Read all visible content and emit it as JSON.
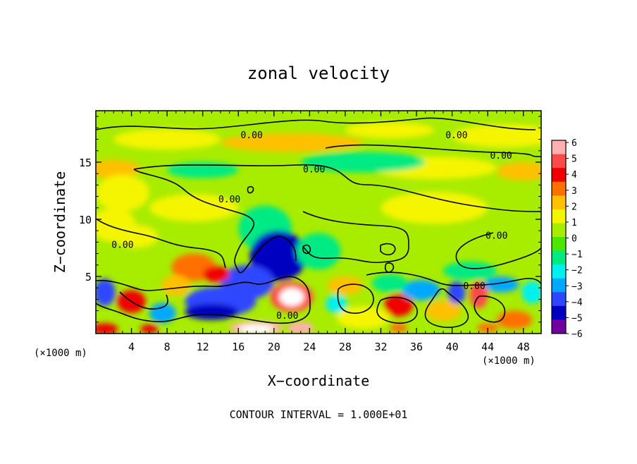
{
  "chart_data": {
    "type": "heatmap",
    "title": "zonal velocity",
    "xlabel": "X−coordinate",
    "ylabel": "Z−coordinate",
    "x_unit_left": "(×1000 m)",
    "x_unit_right": "(×1000 m)",
    "footer": "CONTOUR INTERVAL = 1.000E+01",
    "xlim": [
      0,
      50
    ],
    "ylim": [
      0,
      19.5
    ],
    "x_ticks": [
      4,
      8,
      12,
      16,
      20,
      24,
      28,
      32,
      36,
      40,
      44,
      48
    ],
    "y_ticks": [
      5,
      10,
      15
    ],
    "colorbar": {
      "min": -6,
      "max": 6,
      "ticks": [
        6,
        5,
        4,
        3,
        2,
        1,
        0,
        -1,
        -2,
        -3,
        -4,
        -5,
        -6
      ],
      "tick_labels": [
        "6",
        "5",
        "4",
        "3",
        "2",
        "1",
        "0",
        "−1",
        "−2",
        "−3",
        "−4",
        "−5",
        "−6"
      ],
      "colors": [
        "#ffb0b0",
        "#ff4a4a",
        "#f00000",
        "#ff7000",
        "#ffc000",
        "#f5f500",
        "#a8ec00",
        "#4ce600",
        "#00ea84",
        "#00f0f0",
        "#00a8ff",
        "#2e46ff",
        "#0000c0",
        "#7000a0"
      ]
    },
    "contour_labels": [
      {
        "text": "0.00",
        "x": 17.5,
        "y": 17.4
      },
      {
        "text": "0.00",
        "x": 40.5,
        "y": 17.4
      },
      {
        "text": "0.00",
        "x": 45.5,
        "y": 15.6
      },
      {
        "text": "0.00",
        "x": 24.5,
        "y": 14.4
      },
      {
        "text": "0.00",
        "x": 15,
        "y": 11.8
      },
      {
        "text": "0.00",
        "x": 3,
        "y": 7.8
      },
      {
        "text": "0.00",
        "x": 45,
        "y": 8.6
      },
      {
        "text": "0.00",
        "x": 42.5,
        "y": 4.2
      },
      {
        "text": "0.00",
        "x": 21.5,
        "y": 1.6
      }
    ],
    "blobs": [
      {
        "x": 8,
        "y": 17,
        "rx": 6,
        "ry": 0.9,
        "v": 1.6
      },
      {
        "x": 22,
        "y": 16.7,
        "rx": 8,
        "ry": 0.8,
        "v": 2.0
      },
      {
        "x": 33,
        "y": 17.8,
        "rx": 5,
        "ry": 0.7,
        "v": 1.0
      },
      {
        "x": 46,
        "y": 17.3,
        "rx": 6,
        "ry": 1.0,
        "v": 1.4
      },
      {
        "x": 2,
        "y": 14.4,
        "rx": 3,
        "ry": 0.8,
        "v": 2.4
      },
      {
        "x": 48,
        "y": 14.2,
        "rx": 3,
        "ry": 0.8,
        "v": 2.2
      },
      {
        "x": 38,
        "y": 14.5,
        "rx": 7,
        "ry": 1.0,
        "v": 1.3
      },
      {
        "x": 12,
        "y": 14.3,
        "rx": 4,
        "ry": 0.7,
        "v": -1.0
      },
      {
        "x": 30,
        "y": 15.0,
        "rx": 7,
        "ry": 0.9,
        "v": -0.9
      },
      {
        "x": 3,
        "y": 12.3,
        "rx": 3,
        "ry": 1.6,
        "v": 1.3
      },
      {
        "x": 38,
        "y": 11.0,
        "rx": 6,
        "ry": 1.4,
        "v": 1.2
      },
      {
        "x": 11,
        "y": 11.0,
        "rx": 5,
        "ry": 1.2,
        "v": 1.0
      },
      {
        "x": 2,
        "y": 9.5,
        "rx": 2.5,
        "ry": 1.5,
        "v": 1.2
      },
      {
        "x": 19,
        "y": 9.2,
        "rx": 3,
        "ry": 2.0,
        "v": -1.5
      },
      {
        "x": 20.5,
        "y": 6.8,
        "rx": 3.2,
        "ry": 2.2,
        "v": -4.8
      },
      {
        "x": 17,
        "y": 4.5,
        "rx": 3,
        "ry": 1.5,
        "v": -3.5
      },
      {
        "x": 14,
        "y": 2.8,
        "rx": 4,
        "ry": 1.3,
        "v": -4.2
      },
      {
        "x": 13,
        "y": 1.9,
        "rx": 3,
        "ry": 0.7,
        "v": -5.0
      },
      {
        "x": 11,
        "y": 5.8,
        "rx": 2.5,
        "ry": 1.2,
        "v": 3.4
      },
      {
        "x": 13.5,
        "y": 5.2,
        "rx": 1.5,
        "ry": 0.7,
        "v": 4.2
      },
      {
        "x": 9,
        "y": 4.2,
        "rx": 1.6,
        "ry": 0.9,
        "v": 2.2
      },
      {
        "x": 22,
        "y": 3.2,
        "rx": 2.4,
        "ry": 1.3,
        "v": 4.5
      },
      {
        "x": 22,
        "y": 3.2,
        "rx": 1.4,
        "ry": 0.8,
        "v": 6.2
      },
      {
        "x": 18,
        "y": 0.5,
        "rx": 3,
        "ry": 0.6,
        "v": 5.5
      },
      {
        "x": 18,
        "y": 0.4,
        "rx": 2,
        "ry": 0.4,
        "v": 6.5
      },
      {
        "x": 23,
        "y": 0.5,
        "rx": 1.5,
        "ry": 0.5,
        "v": 5.5
      },
      {
        "x": 4,
        "y": 2.8,
        "rx": 1.6,
        "ry": 1.0,
        "v": 3.6
      },
      {
        "x": 1,
        "y": 3.6,
        "rx": 1.2,
        "ry": 1.2,
        "v": -4.2
      },
      {
        "x": 7.5,
        "y": 1.8,
        "rx": 1.5,
        "ry": 0.9,
        "v": -3.0
      },
      {
        "x": 1,
        "y": 0.4,
        "rx": 1.5,
        "ry": 0.5,
        "v": 4.0
      },
      {
        "x": 6,
        "y": 0.4,
        "rx": 1.0,
        "ry": 0.4,
        "v": 3.5
      },
      {
        "x": 34,
        "y": 2.5,
        "rx": 1.6,
        "ry": 1.0,
        "v": 3.6
      },
      {
        "x": 43,
        "y": 3.4,
        "rx": 1.0,
        "ry": 1.2,
        "v": 4.4
      },
      {
        "x": 28,
        "y": 4.2,
        "rx": 2.0,
        "ry": 0.8,
        "v": 1.9
      },
      {
        "x": 47,
        "y": 1.2,
        "rx": 2.0,
        "ry": 0.8,
        "v": 2.6
      },
      {
        "x": 30,
        "y": 1.4,
        "rx": 3.0,
        "ry": 1.0,
        "v": 1.6
      },
      {
        "x": 39,
        "y": 2.0,
        "rx": 2.0,
        "ry": 0.9,
        "v": 2.0
      },
      {
        "x": 36.5,
        "y": 3.8,
        "rx": 2.2,
        "ry": 0.9,
        "v": -3.2
      },
      {
        "x": 40.5,
        "y": 3.6,
        "rx": 1.0,
        "ry": 1.0,
        "v": -3.8
      },
      {
        "x": 45.5,
        "y": 4.3,
        "rx": 2.0,
        "ry": 0.7,
        "v": -3.2
      },
      {
        "x": 49,
        "y": 3.6,
        "rx": 1.2,
        "ry": 1.0,
        "v": -2.2
      },
      {
        "x": 42,
        "y": 5.5,
        "rx": 3,
        "ry": 0.8,
        "v": -1.3
      },
      {
        "x": 33,
        "y": 4.4,
        "rx": 2.0,
        "ry": 0.8,
        "v": -1.5
      },
      {
        "x": 25,
        "y": 7.2,
        "rx": 2.5,
        "ry": 1.6,
        "v": -1.0
      },
      {
        "x": 4.5,
        "y": 8.5,
        "rx": 2.5,
        "ry": 1.0,
        "v": 1.2
      },
      {
        "x": 44,
        "y": 0.5,
        "rx": 1.2,
        "ry": 0.4,
        "v": 3.4
      },
      {
        "x": 34,
        "y": 0.5,
        "rx": 1.0,
        "ry": 0.4,
        "v": 3.0
      },
      {
        "x": 27,
        "y": 2.6,
        "rx": 1.2,
        "ry": 0.8,
        "v": -2.0
      }
    ]
  }
}
